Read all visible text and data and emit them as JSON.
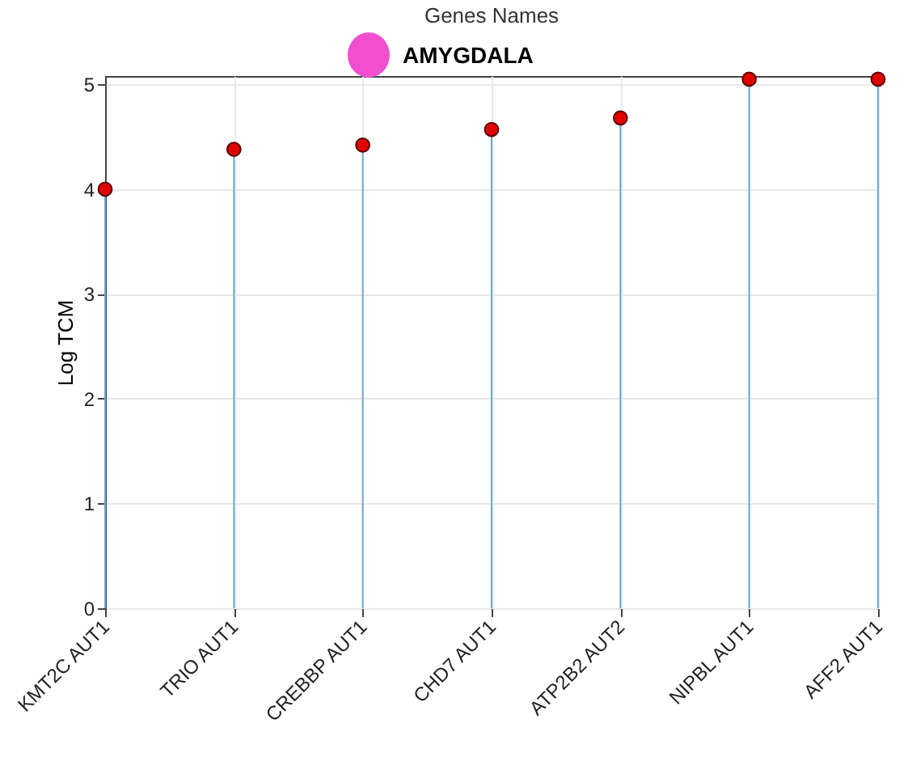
{
  "chart_data": {
    "type": "lollipop",
    "title": "Genes Names",
    "ylabel": "Log TCM",
    "categories": [
      "KMT2C AUT1",
      "TRIO AUT1",
      "CREBBP AUT1",
      "CHD7 AUT1",
      "ATP2B2 AUT2",
      "NIPBL AUT1",
      "AFF2 AUT1"
    ],
    "values": [
      4.0,
      4.38,
      4.42,
      4.57,
      4.68,
      5.05,
      5.05
    ],
    "color": "#e00000",
    "ylim": [
      0,
      5.08
    ],
    "yticks": [
      0,
      1,
      2,
      3,
      4,
      5
    ],
    "grid": true,
    "marker": "circle",
    "annotations": [
      "AMYGDALA"
    ]
  }
}
